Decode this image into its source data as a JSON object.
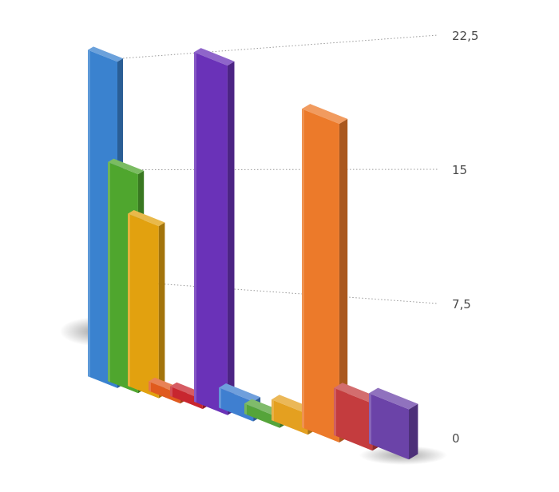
{
  "chart_data": {
    "type": "bar",
    "title": "",
    "xlabel": "",
    "ylabel": "",
    "ylim": [
      0,
      22.5
    ],
    "y_ticks": [
      {
        "value": 0,
        "label": "0"
      },
      {
        "value": 7.5,
        "label": "7,5"
      },
      {
        "value": 15,
        "label": "15"
      },
      {
        "value": 22.5,
        "label": "22,5"
      }
    ],
    "grid": true,
    "legend": "none",
    "perspective": "3d",
    "values": [
      22.0,
      14.5,
      11.2,
      0.6,
      0.6,
      21.5,
      1.2,
      0.6,
      1.2,
      18.0,
      2.6,
      2.7
    ],
    "colors": [
      "#3a82cf",
      "#4fa62e",
      "#e2a10f",
      "#e05a1e",
      "#c8262f",
      "#6a32b8",
      "#3f7fd0",
      "#55a43a",
      "#e4a020",
      "#ec7a2a",
      "#c43c3e",
      "#6b43a8"
    ]
  }
}
